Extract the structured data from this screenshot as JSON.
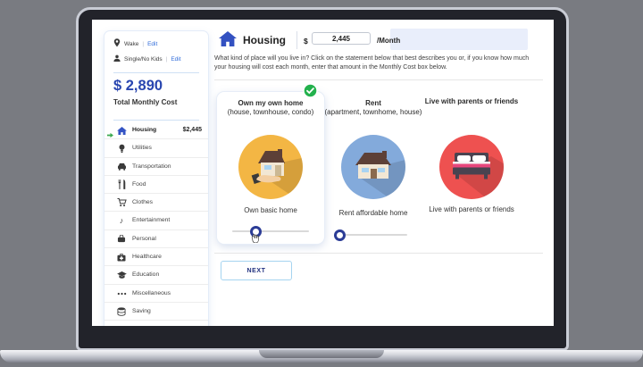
{
  "profile": {
    "location": "Wake",
    "household": "Single/No Kids",
    "sep": "|",
    "edit": "Edit"
  },
  "summary": {
    "total": "$ 2,890",
    "label": "Total Monthly Cost"
  },
  "sidebar": {
    "items": [
      {
        "icon": "home-icon",
        "label": "Housing",
        "value": "$2,445",
        "active": true
      },
      {
        "icon": "lightbulb-icon",
        "label": "Utilities",
        "value": ""
      },
      {
        "icon": "car-icon",
        "label": "Transportation",
        "value": ""
      },
      {
        "icon": "utensils-icon",
        "label": "Food",
        "value": ""
      },
      {
        "icon": "cart-icon",
        "label": "Clothes",
        "value": ""
      },
      {
        "icon": "music-note-icon",
        "label": "Entertainment",
        "value": ""
      },
      {
        "icon": "bag-icon",
        "label": "Personal",
        "value": ""
      },
      {
        "icon": "medkit-icon",
        "label": "Healthcare",
        "value": ""
      },
      {
        "icon": "grad-cap-icon",
        "label": "Education",
        "value": ""
      },
      {
        "icon": "ellipsis-icon",
        "label": "Miscellaneous",
        "value": ""
      },
      {
        "icon": "coins-icon",
        "label": "Saving",
        "value": ""
      }
    ]
  },
  "header": {
    "title": "Housing",
    "currency": "$",
    "monthly_cost": "2,445",
    "per": "/Month"
  },
  "main": {
    "description": "What kind of place will you live in? Click on the statement below that best describes you or, if you know how much your housing will cost each month, enter that amount in the Monthly Cost box below.",
    "next": "NEXT",
    "music_note_glyph": "♪"
  },
  "options": [
    {
      "heading": "Own my own home",
      "subheading": "(house, townhouse, condo)",
      "caption": "Own basic home",
      "selected": true,
      "circle_color": "#F3B644",
      "icon": "house-in-hand-icon",
      "slider_percent": 30
    },
    {
      "heading": "Rent",
      "subheading": "(apartment, townhome, house)",
      "caption": "Rent affordable home",
      "selected": false,
      "circle_color": "#83AADB",
      "icon": "house-icon",
      "slider_percent": 0
    },
    {
      "heading": "Live with parents or friends",
      "subheading": "",
      "caption": "Live with parents or friends",
      "selected": false,
      "circle_color": "#EE5150",
      "icon": "bed-icon",
      "slider_percent": null
    }
  ],
  "colors": {
    "primary_blue": "#2946b0",
    "link_blue": "#2f6bd9",
    "accent_green": "#23b14d",
    "slider_blue": "#2b3c96",
    "circle_yellow": "#F3B644",
    "circle_blue": "#83AADB",
    "circle_red": "#EE5150"
  }
}
